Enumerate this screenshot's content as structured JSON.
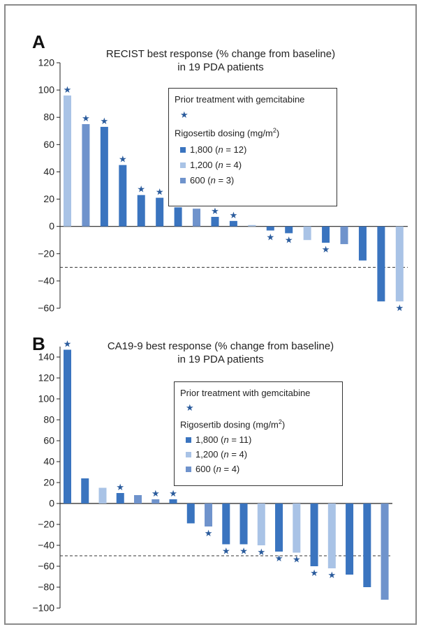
{
  "chart_data": [
    {
      "type": "bar",
      "panel": "A",
      "title": "RECIST best response (% change from baseline)",
      "subtitle": "in 19 PDA patients",
      "ylim": [
        -60,
        120
      ],
      "yticks": [
        "120",
        "100",
        "80",
        "60",
        "40",
        "20",
        "0",
        "−20",
        "−40",
        "−60"
      ],
      "ytick_values": [
        120,
        100,
        80,
        60,
        40,
        20,
        0,
        -20,
        -40,
        -60
      ],
      "threshold": -30,
      "values": [
        96,
        75,
        73,
        45,
        23,
        21,
        14,
        13,
        7,
        4,
        1,
        -3,
        -5,
        -10,
        -12,
        -13,
        -25,
        -55,
        -55
      ],
      "dose": [
        "1200",
        "600",
        "1800",
        "1800",
        "1800",
        "1800",
        "1800",
        "600",
        "1800",
        "1800",
        "1200",
        "1800",
        "1800",
        "1200",
        "1800",
        "600",
        "1800",
        "1800",
        "1200"
      ],
      "prior_gemcitabine": [
        true,
        true,
        true,
        true,
        true,
        true,
        false,
        false,
        true,
        true,
        false,
        true,
        true,
        false,
        true,
        false,
        false,
        false,
        true
      ],
      "legend": {
        "prior_label": "Prior treatment with gemcitabine",
        "star": "★",
        "dosing_label": "Rigosertib dosing (mg/m",
        "dosing_sup": "2",
        "dosing_close": ")",
        "items": [
          {
            "dose": "1800",
            "text": "1,800 (",
            "n": "n",
            "rest": " = 12)"
          },
          {
            "dose": "1200",
            "text": "1,200 (",
            "n": "n",
            "rest": " = 4)"
          },
          {
            "dose": "600",
            "text": "600 (",
            "n": "n",
            "rest": " = 3)"
          }
        ]
      }
    },
    {
      "type": "bar",
      "panel": "B",
      "title": "CA19-9 best response (% change from baseline)",
      "subtitle": "in 19 PDA patients",
      "ylim": [
        -100,
        150
      ],
      "yticks": [
        "140",
        "120",
        "100",
        "80",
        "60",
        "40",
        "20",
        "0",
        "−20",
        "−40",
        "−60",
        "−80",
        "−100"
      ],
      "ytick_values": [
        140,
        120,
        100,
        80,
        60,
        40,
        20,
        0,
        -20,
        -40,
        -60,
        -80,
        -100
      ],
      "threshold": -50,
      "values": [
        147,
        24,
        15,
        10,
        8,
        4,
        4,
        -19,
        -22,
        -39,
        -39,
        -40,
        -46,
        -47,
        -60,
        -62,
        -68,
        -80,
        -92
      ],
      "dose": [
        "1800",
        "1800",
        "1200",
        "1800",
        "600",
        "600",
        "1800",
        "1800",
        "600",
        "1800",
        "1800",
        "1200",
        "1800",
        "1200",
        "1800",
        "1200",
        "1800",
        "1800",
        "600"
      ],
      "prior_gemcitabine": [
        true,
        false,
        false,
        true,
        false,
        true,
        true,
        false,
        true,
        true,
        true,
        true,
        true,
        true,
        true,
        true,
        false,
        false,
        false
      ],
      "legend": {
        "prior_label": "Prior treatment with gemcitabine",
        "star": "★",
        "dosing_label": "Rigosertib dosing (mg/m",
        "dosing_sup": "2",
        "dosing_close": ")",
        "items": [
          {
            "dose": "1800",
            "text": "1,800 (",
            "n": "n",
            "rest": " = 11)"
          },
          {
            "dose": "1200",
            "text": "1,200 (",
            "n": "n",
            "rest": " = 4)"
          },
          {
            "dose": "600",
            "text": "600 (",
            "n": "n",
            "rest": " = 4)"
          }
        ]
      }
    }
  ],
  "colors": {
    "dose_1800": "#3a74bf",
    "dose_1200": "#a9c3e6",
    "dose_600": "#6f93cc",
    "star": "#2a5b9c",
    "axis": "#222222"
  },
  "panel_letters": [
    "A",
    "B"
  ]
}
